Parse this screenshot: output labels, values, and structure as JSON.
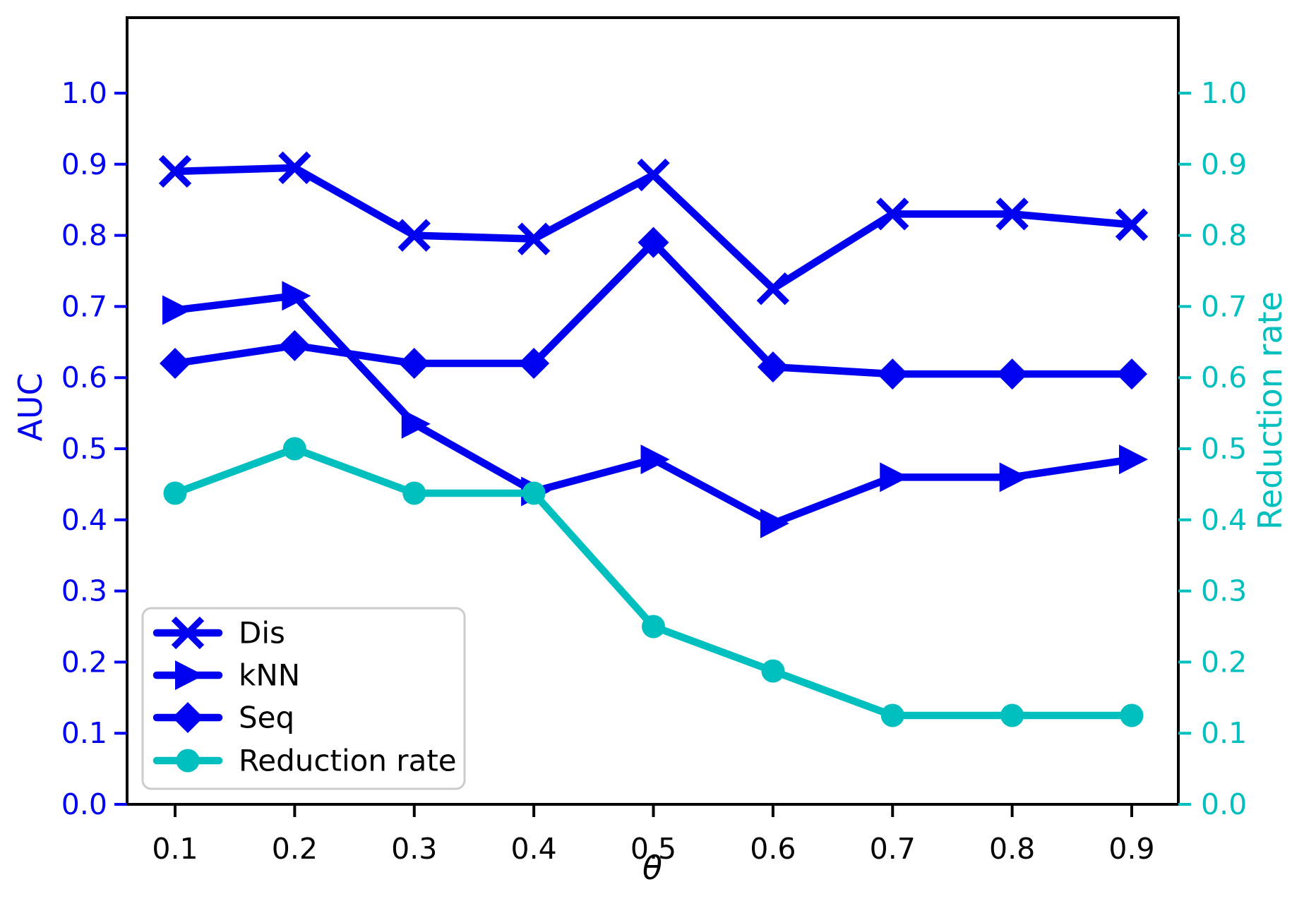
{
  "figure": {
    "background": "#ffffff",
    "spine_color": "#000000"
  },
  "chart_data": {
    "type": "line",
    "title": "",
    "xlabel": "θ",
    "x": [
      0.1,
      0.2,
      0.3,
      0.4,
      0.5,
      0.6,
      0.7,
      0.8,
      0.9
    ],
    "x_tick_labels": [
      "0.1",
      "0.2",
      "0.3",
      "0.4",
      "0.5",
      "0.6",
      "0.7",
      "0.8",
      "0.9"
    ],
    "grid": false,
    "left_axis": {
      "label": "AUC",
      "color": "#0000f0",
      "tick_labels": [
        "0.0",
        "0.1",
        "0.2",
        "0.3",
        "0.4",
        "0.5",
        "0.6",
        "0.7",
        "0.8",
        "0.9",
        "1.0"
      ],
      "range": [
        0.0,
        1.106
      ]
    },
    "right_axis": {
      "label": "Reduction rate",
      "color": "#00bfbf",
      "tick_labels": [
        "0.0",
        "0.1",
        "0.2",
        "0.3",
        "0.4",
        "0.5",
        "0.6",
        "0.7",
        "0.8",
        "0.9",
        "1.0"
      ],
      "range": [
        0.0,
        1.106
      ]
    },
    "series": [
      {
        "name": "Dis",
        "axis": "left",
        "color": "#0000f0",
        "marker": "x",
        "values": [
          0.89,
          0.895,
          0.8,
          0.795,
          0.885,
          0.725,
          0.83,
          0.83,
          0.815
        ]
      },
      {
        "name": "kNN",
        "axis": "left",
        "color": "#0000f0",
        "marker": "triangle-right",
        "values": [
          0.695,
          0.715,
          0.535,
          0.44,
          0.485,
          0.395,
          0.46,
          0.46,
          0.485
        ]
      },
      {
        "name": "Seq",
        "axis": "left",
        "color": "#0000f0",
        "marker": "diamond",
        "values": [
          0.62,
          0.645,
          0.62,
          0.62,
          0.79,
          0.615,
          0.605,
          0.605,
          0.605
        ]
      },
      {
        "name": "Reduction rate",
        "axis": "right",
        "color": "#00bfbf",
        "marker": "circle",
        "values": [
          0.4375,
          0.5,
          0.4375,
          0.4375,
          0.25,
          0.1875,
          0.125,
          0.125,
          0.125
        ]
      }
    ],
    "legend": {
      "position": "lower left",
      "items": [
        "Dis",
        "kNN",
        "Seq",
        "Reduction rate"
      ],
      "border_color": "#cccccc",
      "text_color": "#000000"
    }
  }
}
